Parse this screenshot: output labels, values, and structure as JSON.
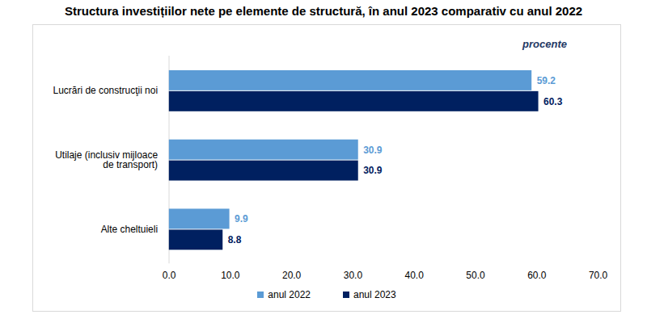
{
  "chart_data": {
    "type": "bar",
    "orientation": "horizontal",
    "title": "Structura investițiilor nete pe elemente de structură, în anul 2023 comparativ cu anul 2022",
    "xlabel": "procente",
    "categories": [
      "Lucrări de construcţii noi",
      "Utilaje (inclusiv mijloace de transport)",
      "Alte cheltuieli"
    ],
    "series": [
      {
        "name": "anul 2022",
        "color": "#5b9bd5",
        "values": [
          59.2,
          30.9,
          9.9
        ]
      },
      {
        "name": "anul 2023",
        "color": "#002060",
        "values": [
          60.3,
          30.9,
          8.8
        ]
      }
    ],
    "xlim": [
      0,
      70
    ],
    "xticks": [
      {
        "value": 0,
        "label": "0.0"
      },
      {
        "value": 10,
        "label": "10.0"
      },
      {
        "value": 20,
        "label": "20.0"
      },
      {
        "value": 30,
        "label": "30.0"
      },
      {
        "value": 40,
        "label": "40.0"
      },
      {
        "value": 50,
        "label": "50.0"
      },
      {
        "value": 60,
        "label": "60.0"
      },
      {
        "value": 70,
        "label": "70.0"
      }
    ],
    "data_labels": true,
    "grid": false,
    "legend": "bottom"
  }
}
